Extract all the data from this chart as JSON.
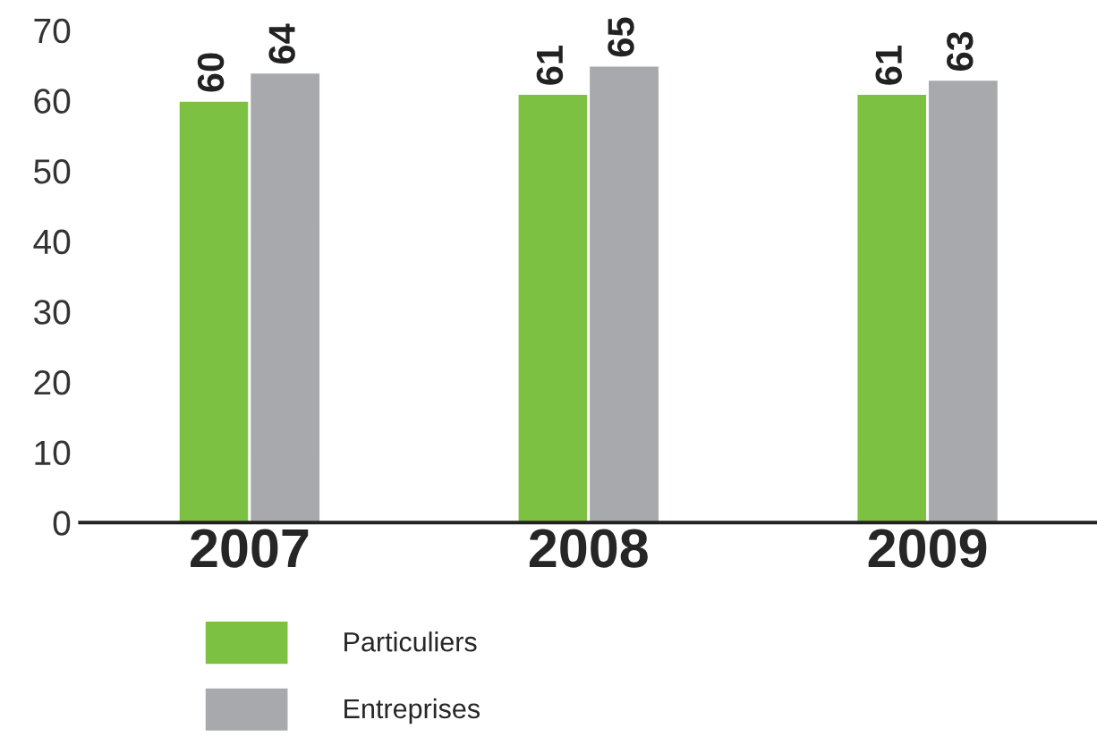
{
  "chart_data": {
    "type": "bar",
    "categories": [
      "2007",
      "2008",
      "2009"
    ],
    "series": [
      {
        "name": "Particuliers",
        "color": "#7dc142",
        "values": [
          60,
          61,
          61
        ]
      },
      {
        "name": "Entreprises",
        "color": "#a7a9ac",
        "values": [
          64,
          65,
          63
        ]
      }
    ],
    "ylim": [
      0,
      70
    ],
    "yticks": [
      0,
      10,
      20,
      30,
      40,
      50,
      60,
      70
    ],
    "data_labels": true,
    "grid": false,
    "legend": "bottom"
  }
}
